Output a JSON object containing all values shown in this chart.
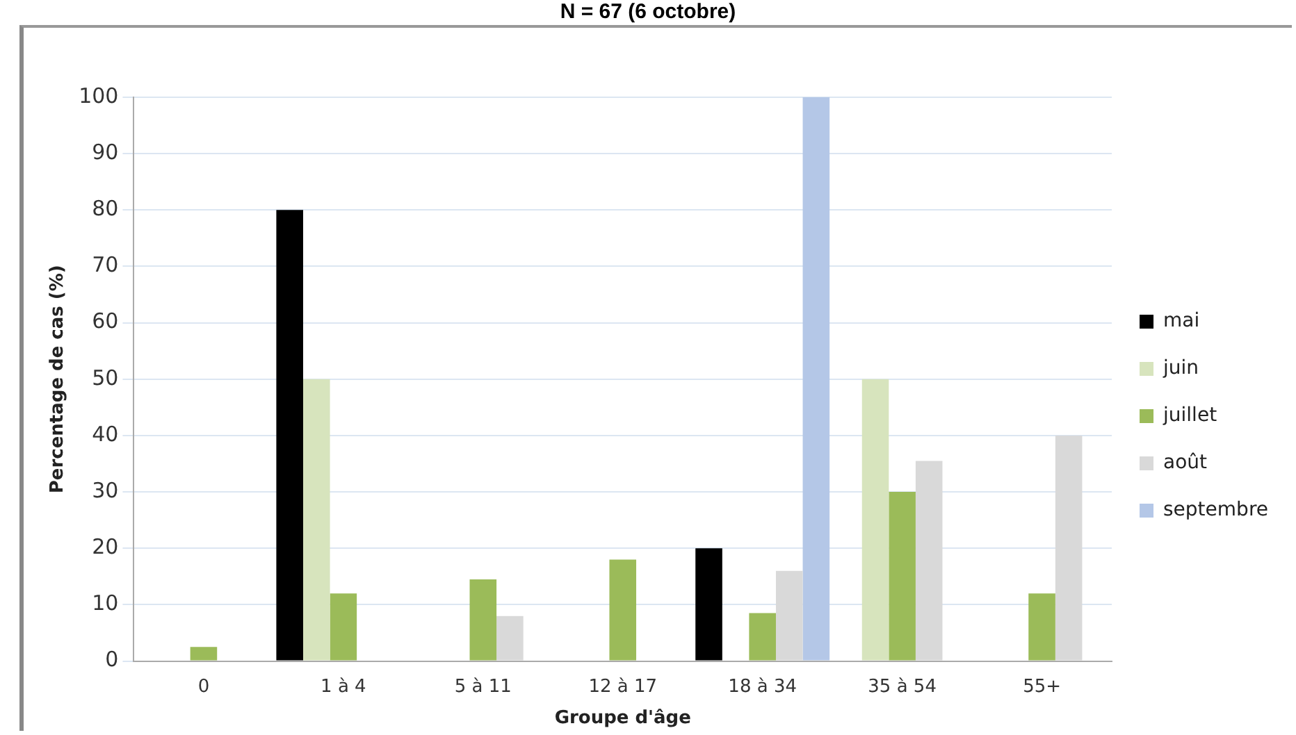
{
  "chart_data": {
    "type": "bar",
    "title": "N = 67 (6 octobre)",
    "xlabel": "Groupe d'âge",
    "ylabel": "Percentage de cas (%)",
    "categories": [
      "0",
      "1 à 4",
      "5 à 11",
      "12 à 17",
      "18 à 34",
      "35 à 54",
      "55+"
    ],
    "series": [
      {
        "name": "mai",
        "color": "#000000",
        "values": [
          null,
          80,
          null,
          null,
          20,
          null,
          null
        ]
      },
      {
        "name": "juin",
        "color": "#d7e4bd",
        "values": [
          null,
          50,
          null,
          null,
          null,
          50,
          null
        ]
      },
      {
        "name": "juillet",
        "color": "#9bbb59",
        "values": [
          2.5,
          12,
          14.5,
          18,
          8.5,
          30,
          12
        ]
      },
      {
        "name": "août",
        "color": "#d9d9d9",
        "values": [
          null,
          null,
          8,
          null,
          16,
          35.5,
          40
        ]
      },
      {
        "name": "septembre",
        "color": "#b4c7e7",
        "values": [
          null,
          null,
          null,
          null,
          100,
          null,
          null
        ]
      }
    ],
    "ylim": [
      0,
      100
    ],
    "yticks": [
      0,
      10,
      20,
      30,
      40,
      50,
      60,
      70,
      80,
      90,
      100
    ],
    "grid": "y",
    "legend": "right"
  }
}
